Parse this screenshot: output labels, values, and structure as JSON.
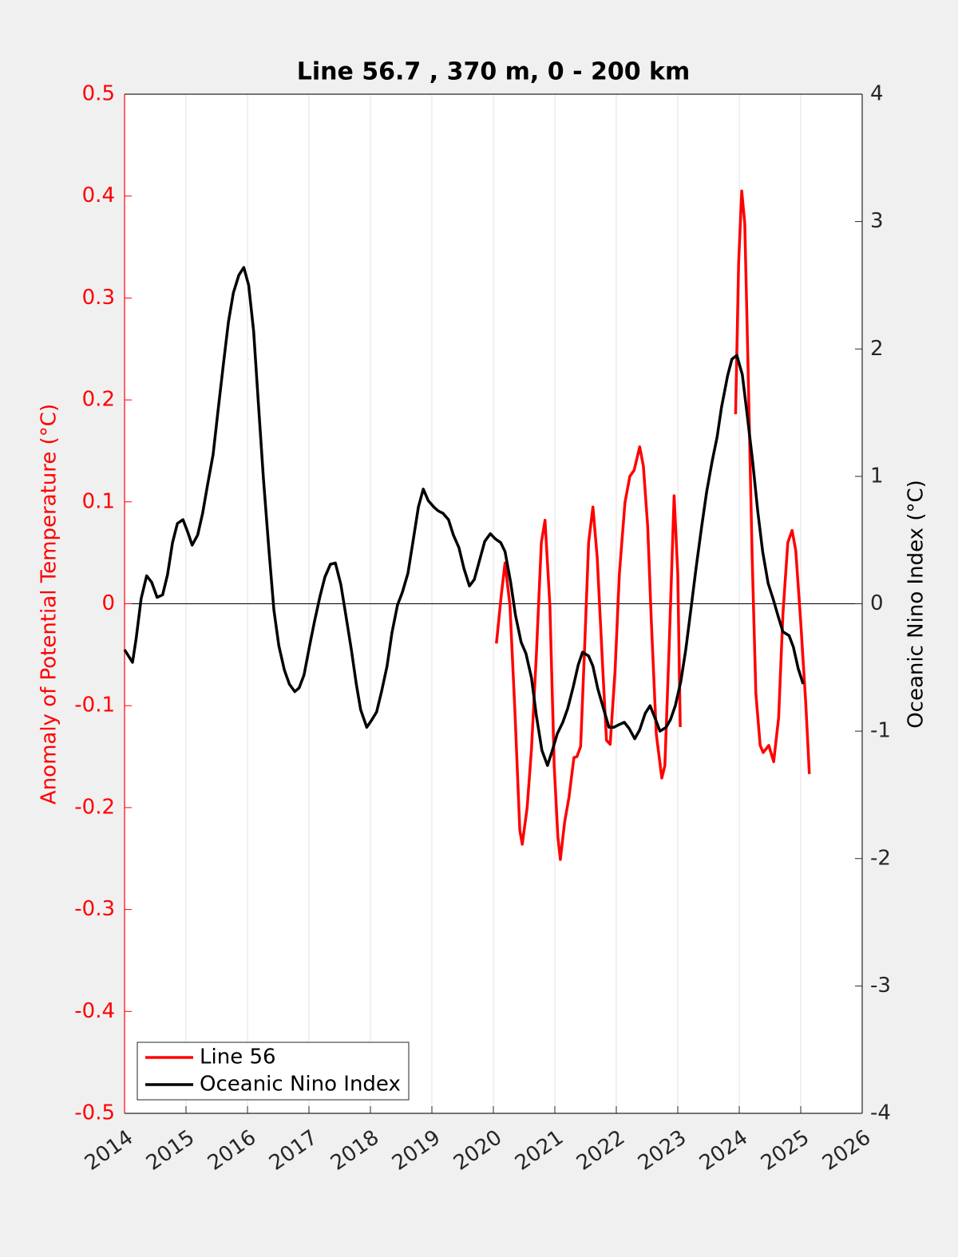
{
  "chart_data": {
    "type": "line",
    "title": "Line 56.7 , 370 m, 0 - 200 km",
    "y_label": "Anomaly of Potential Temperature (°C)",
    "y2_label": "Oceanic Nino Index (°C)",
    "xlim": [
      2014,
      2026
    ],
    "xticks": [
      2014,
      2015,
      2016,
      2017,
      2018,
      2019,
      2020,
      2021,
      2022,
      2023,
      2024,
      2025,
      2026
    ],
    "ylim": [
      -0.5,
      0.5
    ],
    "yticks": [
      0.5,
      0.4,
      0.3,
      0.2,
      0.1,
      0,
      -0.1,
      -0.2,
      -0.3,
      -0.4,
      -0.5
    ],
    "y2lim": [
      -4,
      4
    ],
    "y2ticks": [
      4,
      3,
      2,
      1,
      0,
      -1,
      -2,
      -3,
      -4
    ],
    "grid": true,
    "legend": "southwest",
    "series": [
      {
        "name": "Line 56",
        "color": "#ff0000",
        "x": [
          2020.05,
          2020.13,
          2020.19,
          2020.27,
          2020.35,
          2020.43,
          2020.47,
          2020.55,
          2020.62,
          2020.7,
          2020.78,
          2020.84,
          2020.92,
          2020.99,
          2021.05,
          2021.09,
          2021.16,
          2021.23,
          2021.31,
          2021.36,
          2021.42,
          2021.48,
          2021.55,
          2021.62,
          2021.69,
          2021.78,
          2021.84,
          2021.9,
          2021.98,
          2022.05,
          2022.14,
          2022.22,
          2022.29,
          2022.38,
          2022.44,
          2022.51,
          2022.57,
          2022.65,
          2022.74,
          2022.79,
          2022.86,
          2022.94,
          2023.0,
          2023.04,
          2023.5,
          2023.94,
          2023.99,
          2024.04,
          2024.09,
          2024.14,
          2024.21,
          2024.27,
          2024.34,
          2024.39,
          2024.48,
          2024.56,
          2024.64,
          2024.71,
          2024.79,
          2024.86,
          2024.92,
          2025.0,
          2025.08,
          2025.14
        ],
        "values": [
          -0.039,
          0.009,
          0.04,
          -0.002,
          -0.104,
          -0.222,
          -0.236,
          -0.2,
          -0.143,
          -0.049,
          0.06,
          0.082,
          -0.002,
          -0.159,
          -0.229,
          -0.251,
          -0.214,
          -0.19,
          -0.151,
          -0.15,
          -0.14,
          -0.049,
          0.06,
          0.095,
          0.045,
          -0.065,
          -0.134,
          -0.138,
          -0.065,
          0.029,
          0.099,
          0.125,
          0.131,
          0.154,
          0.135,
          0.076,
          -0.018,
          -0.128,
          -0.171,
          -0.159,
          -0.042,
          0.106,
          0.029,
          -0.121,
          null,
          0.186,
          0.334,
          0.405,
          0.373,
          0.24,
          0.045,
          -0.088,
          -0.139,
          -0.146,
          -0.139,
          -0.155,
          -0.112,
          -0.01,
          0.06,
          0.072,
          0.052,
          -0.018,
          -0.096,
          -0.167
        ]
      },
      {
        "name": "Oceanic Nino Index",
        "color": "#000000",
        "axis": "y2",
        "x": [
          2014.0,
          2014.09,
          2014.13,
          2014.19,
          2014.27,
          2014.36,
          2014.44,
          2014.53,
          2014.62,
          2014.7,
          2014.78,
          2014.86,
          2014.95,
          2015.03,
          2015.1,
          2015.19,
          2015.27,
          2015.35,
          2015.44,
          2015.52,
          2015.61,
          2015.69,
          2015.77,
          2015.86,
          2015.94,
          2016.02,
          2016.1,
          2016.18,
          2016.26,
          2016.35,
          2016.43,
          2016.51,
          2016.6,
          2016.68,
          2016.77,
          2016.84,
          2016.92,
          2017.01,
          2017.09,
          2017.18,
          2017.26,
          2017.35,
          2017.43,
          2017.52,
          2017.6,
          2017.69,
          2017.77,
          2017.84,
          2017.94,
          2018.01,
          2018.1,
          2018.18,
          2018.27,
          2018.35,
          2018.44,
          2018.52,
          2018.61,
          2018.69,
          2018.78,
          2018.86,
          2018.94,
          2019.03,
          2019.1,
          2019.18,
          2019.27,
          2019.35,
          2019.44,
          2019.52,
          2019.61,
          2019.69,
          2019.78,
          2019.86,
          2019.95,
          2020.03,
          2020.12,
          2020.19,
          2020.28,
          2020.36,
          2020.45,
          2020.53,
          2020.62,
          2020.7,
          2020.79,
          2020.88,
          2020.96,
          2021.04,
          2021.13,
          2021.21,
          2021.3,
          2021.38,
          2021.45,
          2021.55,
          2021.62,
          2021.7,
          2021.79,
          2021.88,
          2021.96,
          2022.04,
          2022.13,
          2022.21,
          2022.3,
          2022.38,
          2022.47,
          2022.55,
          2022.64,
          2022.71,
          2022.81,
          2022.88,
          2022.96,
          2023.05,
          2023.13,
          2023.22,
          2023.3,
          2023.39,
          2023.47,
          2023.56,
          2023.64,
          2023.71,
          2023.81,
          2023.88,
          2023.96,
          2024.05,
          2024.13,
          2024.22,
          2024.3,
          2024.38,
          2024.47,
          2024.55,
          2024.64,
          2024.71,
          2024.81,
          2024.88,
          2024.96,
          2025.04
        ],
        "values": [
          -0.36,
          -0.43,
          -0.46,
          -0.27,
          0.04,
          0.22,
          0.17,
          0.05,
          0.07,
          0.23,
          0.48,
          0.63,
          0.66,
          0.56,
          0.46,
          0.54,
          0.71,
          0.93,
          1.17,
          1.51,
          1.89,
          2.21,
          2.44,
          2.58,
          2.64,
          2.5,
          2.14,
          1.55,
          0.98,
          0.42,
          -0.05,
          -0.33,
          -0.52,
          -0.63,
          -0.69,
          -0.66,
          -0.56,
          -0.33,
          -0.14,
          0.06,
          0.21,
          0.31,
          0.32,
          0.15,
          -0.09,
          -0.36,
          -0.63,
          -0.83,
          -0.97,
          -0.92,
          -0.85,
          -0.69,
          -0.49,
          -0.23,
          -0.01,
          0.09,
          0.24,
          0.48,
          0.76,
          0.9,
          0.81,
          0.76,
          0.73,
          0.71,
          0.66,
          0.54,
          0.44,
          0.28,
          0.14,
          0.19,
          0.35,
          0.49,
          0.55,
          0.51,
          0.48,
          0.41,
          0.17,
          -0.09,
          -0.3,
          -0.39,
          -0.58,
          -0.88,
          -1.15,
          -1.27,
          -1.15,
          -1.02,
          -0.93,
          -0.82,
          -0.65,
          -0.48,
          -0.38,
          -0.41,
          -0.49,
          -0.67,
          -0.82,
          -0.97,
          -0.97,
          -0.95,
          -0.93,
          -0.98,
          -1.06,
          -0.99,
          -0.86,
          -0.8,
          -0.91,
          -1.0,
          -0.97,
          -0.91,
          -0.8,
          -0.61,
          -0.36,
          -0.02,
          0.29,
          0.61,
          0.88,
          1.12,
          1.31,
          1.54,
          1.79,
          1.92,
          1.95,
          1.8,
          1.48,
          1.11,
          0.73,
          0.41,
          0.16,
          0.04,
          -0.11,
          -0.22,
          -0.25,
          -0.34,
          -0.51,
          -0.63
        ]
      }
    ]
  }
}
